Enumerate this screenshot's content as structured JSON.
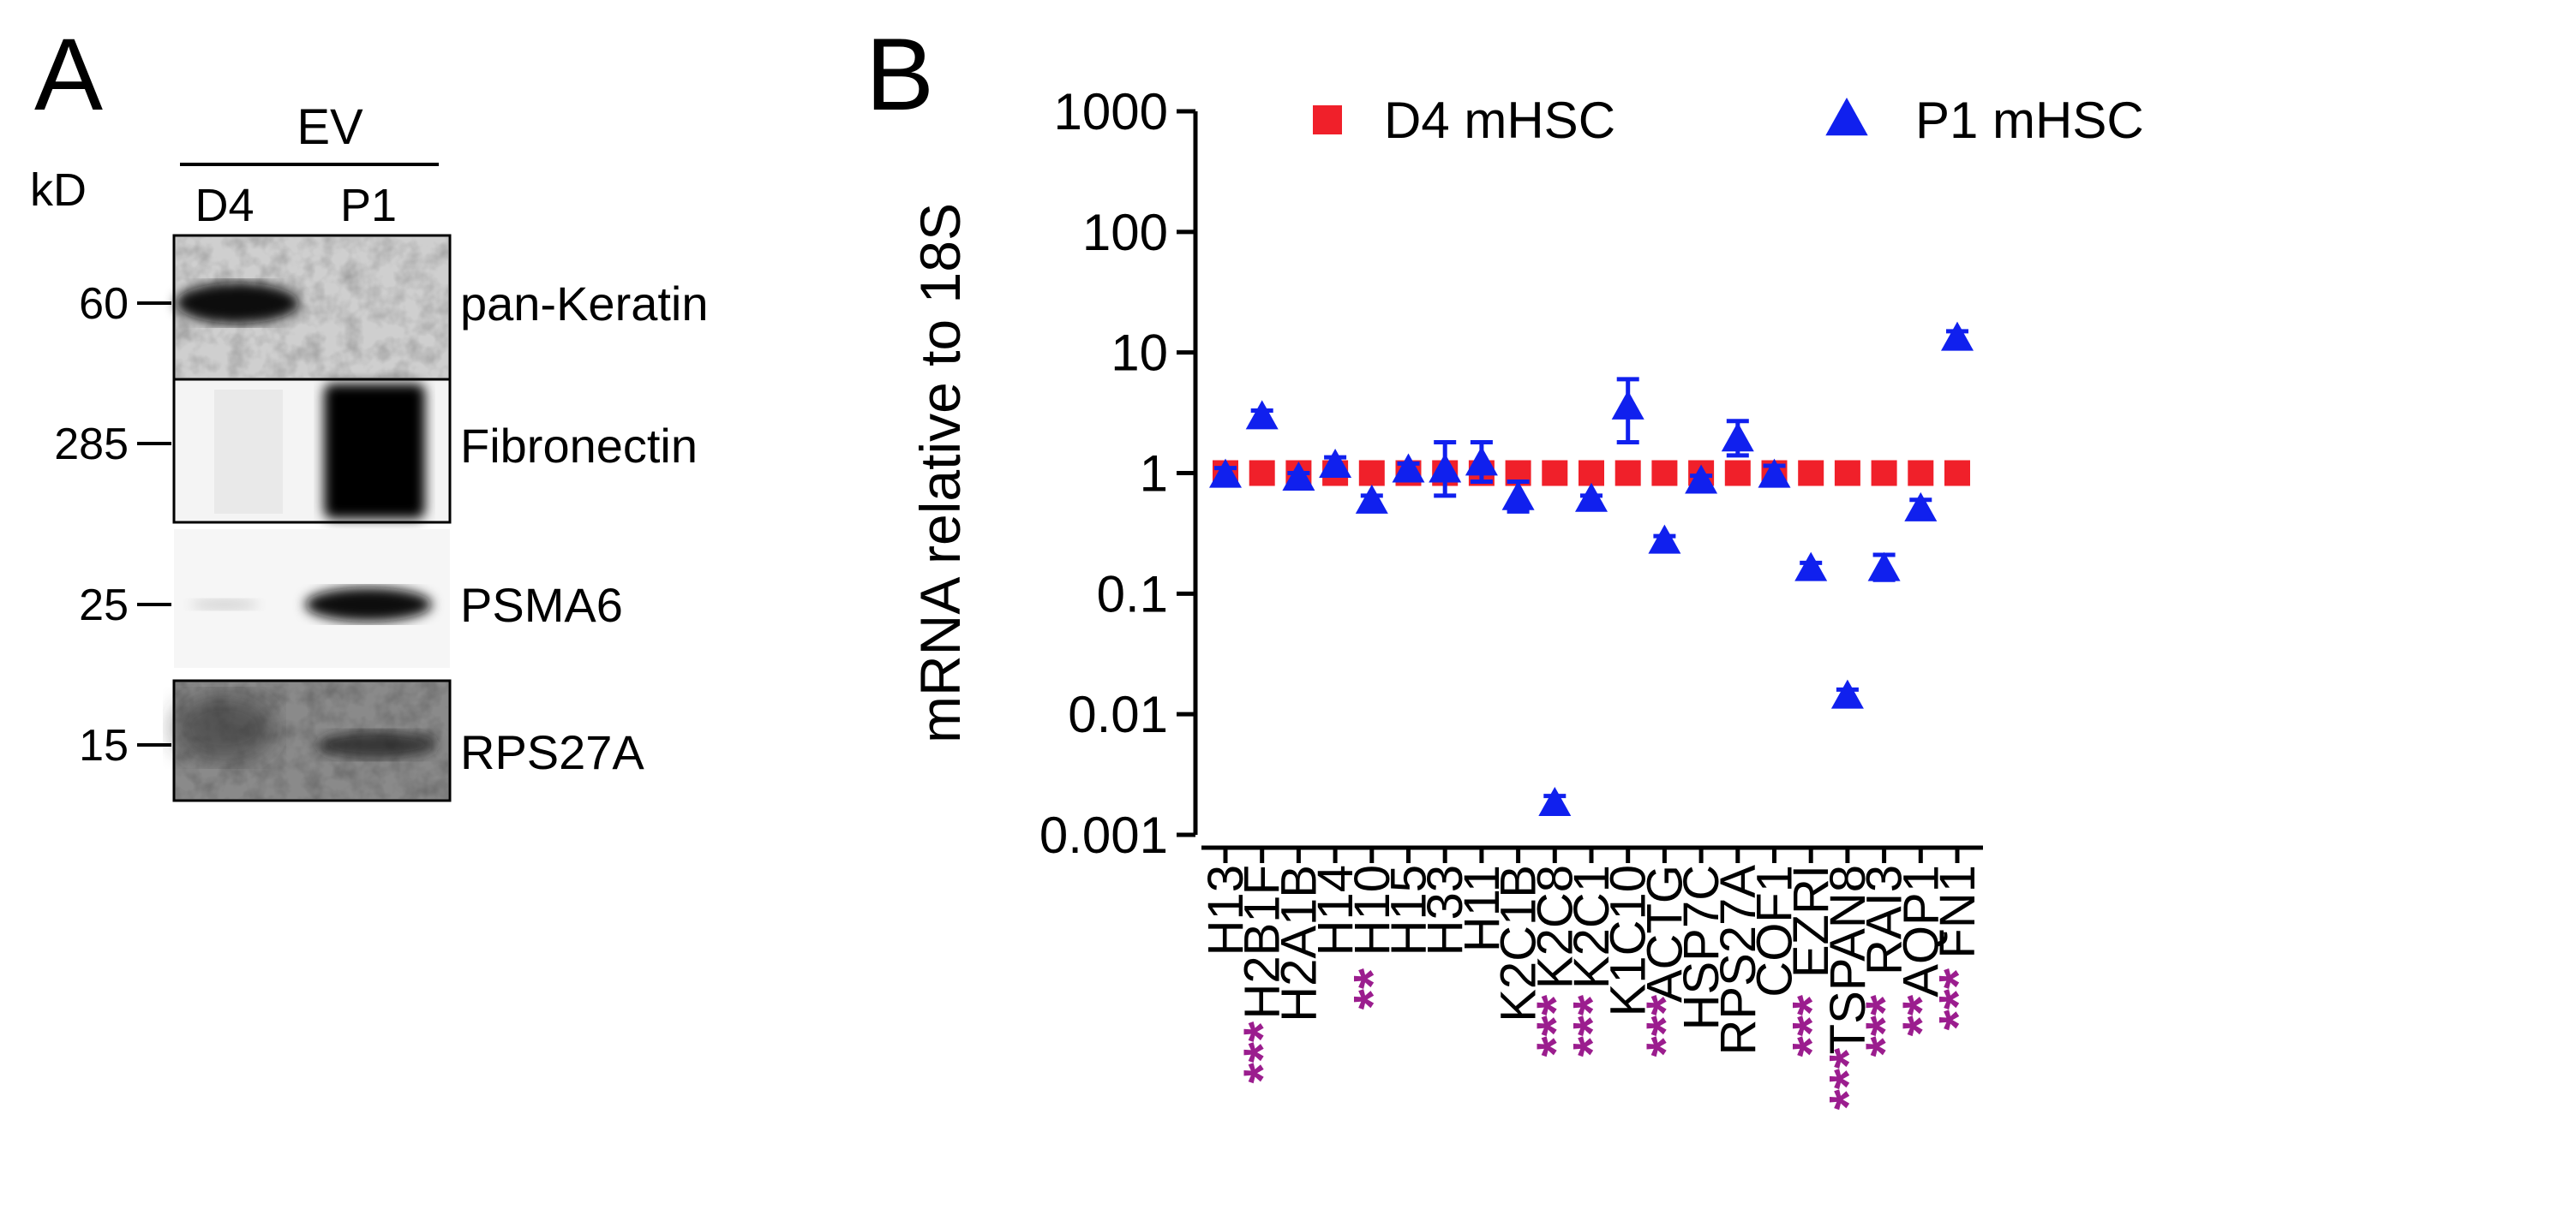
{
  "panel_a": {
    "letter": "A",
    "group_label": "EV",
    "unit_label": "kD",
    "lane_labels": [
      "D4",
      "P1"
    ],
    "blots": [
      {
        "marker": "60",
        "protein": "pan-Keratin"
      },
      {
        "marker": "285",
        "protein": "Fibronectin"
      },
      {
        "marker": "25",
        "protein": "PSMA6"
      },
      {
        "marker": "15",
        "protein": "RPS27A"
      }
    ]
  },
  "panel_b": {
    "letter": "B"
  },
  "chart_data": {
    "type": "scatter",
    "title": "",
    "xlabel": "",
    "ylabel": "mRNA relative to 18S",
    "yscale": "log",
    "ylim": [
      0.001,
      1000
    ],
    "yticks": [
      "0.001",
      "0.01",
      "0.1",
      "1",
      "10",
      "100",
      "1000"
    ],
    "grid": false,
    "legend_position": "top",
    "categories": [
      "H13",
      "H2B1F",
      "H2A1B",
      "H14",
      "H10",
      "H15",
      "H33",
      "H11",
      "K2C1B",
      "K2C8",
      "K2C1",
      "K1C10",
      "ACTG",
      "HSP7C",
      "RPS27A",
      "COF1",
      "EZRI",
      "TSPAN8",
      "RAI3",
      "AQP1",
      "FN1"
    ],
    "series": [
      {
        "name": "D4 mHSC",
        "marker": "square",
        "color": "#f0202a",
        "values": [
          1,
          1,
          1,
          1,
          1,
          1,
          1,
          1,
          1,
          1,
          1,
          1,
          1,
          1,
          1,
          1,
          1,
          1,
          1,
          1,
          1
        ]
      },
      {
        "name": "P1 mHSC",
        "marker": "triangle",
        "color": "#1020ee",
        "values": [
          0.95,
          2.9,
          0.9,
          1.15,
          0.58,
          1.05,
          1.05,
          1.2,
          0.62,
          0.0018,
          0.6,
          3.5,
          0.27,
          0.85,
          1.9,
          0.95,
          0.16,
          0.014,
          0.16,
          0.5,
          13
        ],
        "error_high": [
          1.1,
          3.3,
          1.0,
          1.35,
          0.65,
          1.2,
          1.8,
          1.8,
          0.85,
          0.0021,
          0.65,
          6.0,
          0.3,
          0.95,
          2.7,
          1.15,
          0.18,
          0.016,
          0.21,
          0.6,
          15
        ],
        "error_low": [
          0.85,
          2.6,
          0.82,
          1.0,
          0.52,
          0.95,
          0.65,
          0.85,
          0.48,
          0.0016,
          0.55,
          1.8,
          0.24,
          0.77,
          1.4,
          0.8,
          0.14,
          0.012,
          0.13,
          0.42,
          11.5
        ]
      }
    ],
    "significance": [
      "",
      "***",
      "",
      "",
      "**",
      "",
      "",
      "",
      "",
      "***",
      "***",
      "",
      "***",
      "",
      "",
      "",
      "***",
      "***",
      "***",
      "**",
      "***"
    ],
    "significance_color": "#9b1d8e"
  }
}
